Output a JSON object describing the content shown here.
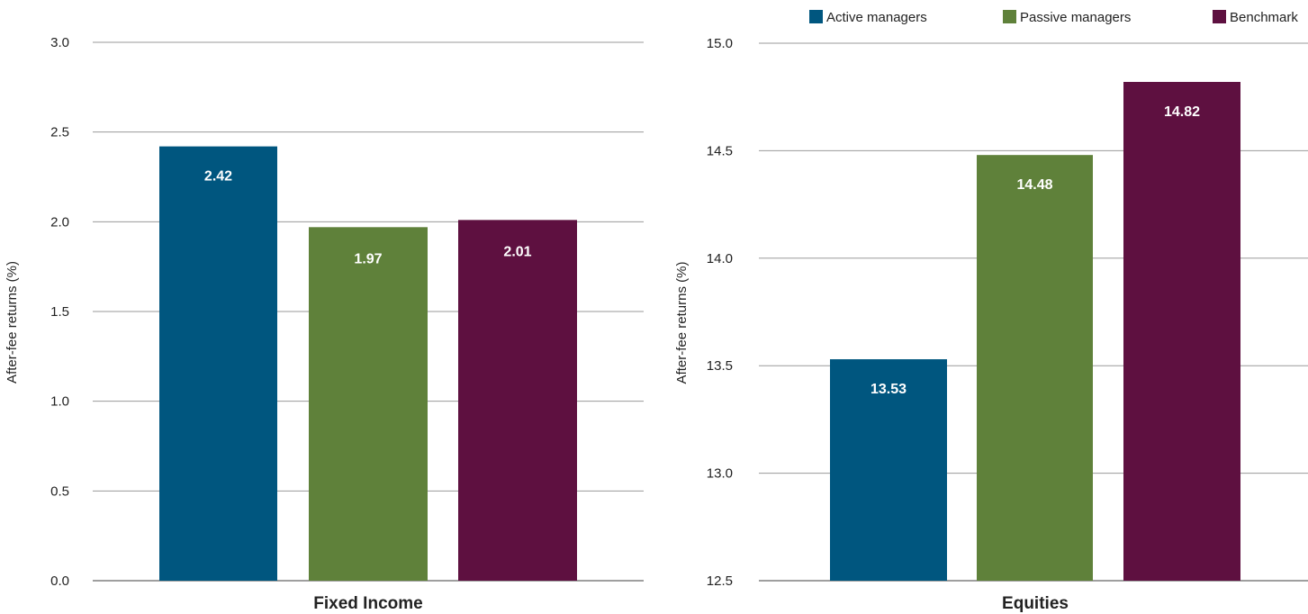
{
  "chart_data": [
    {
      "type": "bar",
      "categories": [
        "Fixed Income"
      ],
      "ylabel": "After-fee returns (%)",
      "ylim": [
        0,
        3.0
      ],
      "yticks": [
        "0.0",
        "0.5",
        "1.0",
        "1.5",
        "2.0",
        "2.5",
        "3.0"
      ],
      "grid": true,
      "series": [
        {
          "name": "Active managers",
          "values": [
            2.42
          ],
          "label": "2.42"
        },
        {
          "name": "Passive managers",
          "values": [
            1.97
          ],
          "label": "1.97"
        },
        {
          "name": "Benchmark",
          "values": [
            2.01
          ],
          "label": "2.01"
        }
      ]
    },
    {
      "type": "bar",
      "categories": [
        "Equities"
      ],
      "ylabel": "After-fee returns (%)",
      "ylim": [
        12.5,
        15.0
      ],
      "yticks": [
        "12.5",
        "13.0",
        "13.5",
        "14.0",
        "14.5",
        "15.0"
      ],
      "grid": true,
      "legend_position": "top-right",
      "series": [
        {
          "name": "Active managers",
          "values": [
            13.53
          ],
          "label": "13.53"
        },
        {
          "name": "Passive managers",
          "values": [
            14.48
          ],
          "label": "14.48"
        },
        {
          "name": "Benchmark",
          "values": [
            14.82
          ],
          "label": "14.82"
        }
      ]
    }
  ],
  "colors": {
    "active": "#00567f",
    "passive": "#5f813a",
    "benchmark": "#5e1040"
  }
}
